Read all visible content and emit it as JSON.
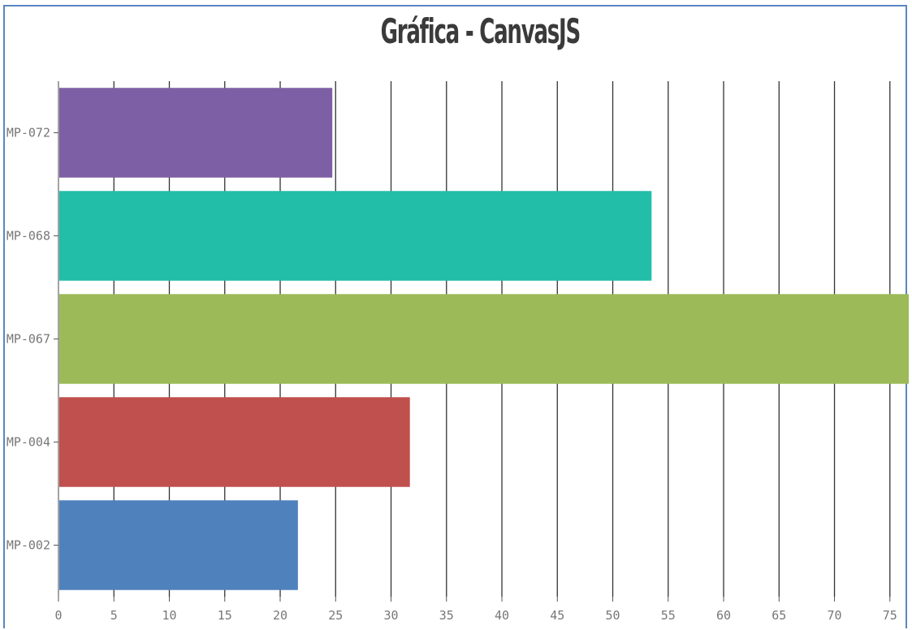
{
  "chart_data": {
    "type": "bar",
    "orientation": "horizontal",
    "title": "Gráfica - CanvasJS",
    "categories": [
      "MP-072",
      "MP-068",
      "MP-067",
      "MP-004",
      "MP-002"
    ],
    "values": [
      24.7,
      53.5,
      76.7,
      31.7,
      21.6
    ],
    "colors": [
      "#7d5fa5",
      "#22bea7",
      "#9cba58",
      "#c0504d",
      "#4f81bd"
    ],
    "xticks": [
      "0",
      "5",
      "10",
      "15",
      "20",
      "25",
      "30",
      "35",
      "40",
      "45",
      "50",
      "55",
      "60",
      "65",
      "70",
      "75"
    ],
    "xlim": [
      0,
      76.7
    ],
    "grid": true,
    "xlabel": "",
    "ylabel": ""
  }
}
